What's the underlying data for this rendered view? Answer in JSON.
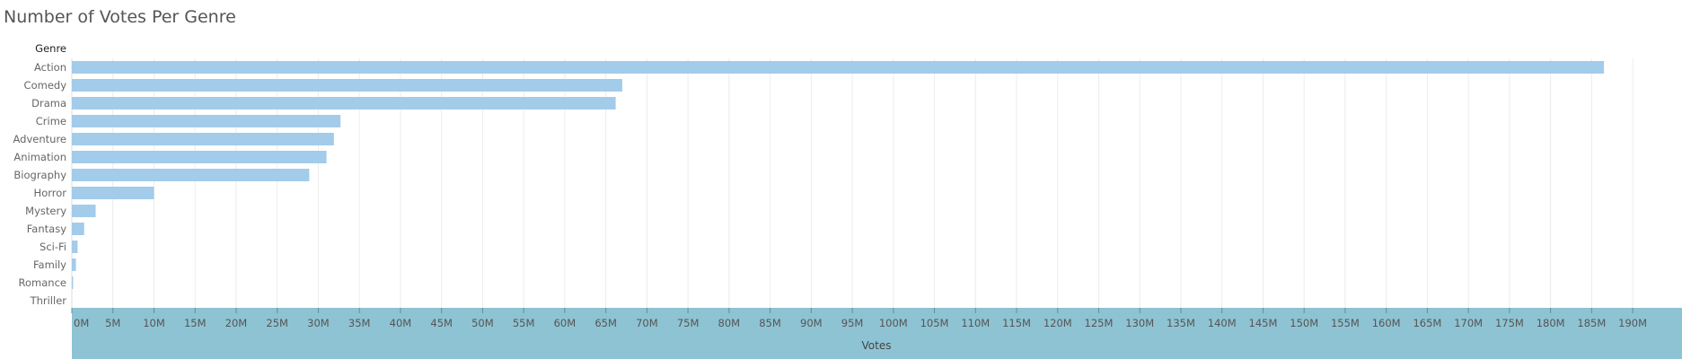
{
  "chart_data": {
    "type": "bar",
    "orientation": "horizontal",
    "title": "Number of Votes Per Genre",
    "row_header": "Genre",
    "xlabel": "Votes",
    "categories": [
      "Action",
      "Comedy",
      "Drama",
      "Crime",
      "Adventure",
      "Animation",
      "Biography",
      "Horror",
      "Mystery",
      "Fantasy",
      "Sci-Fi",
      "Family",
      "Romance",
      "Thriller"
    ],
    "values": [
      186500000,
      67000000,
      66200000,
      32700000,
      31900000,
      31000000,
      28900000,
      10000000,
      2900000,
      1500000,
      700000,
      500000,
      150000,
      0
    ],
    "xlim": [
      0,
      196000000
    ],
    "ticks": [
      0,
      5000000,
      10000000,
      15000000,
      20000000,
      25000000,
      30000000,
      35000000,
      40000000,
      45000000,
      50000000,
      55000000,
      60000000,
      65000000,
      70000000,
      75000000,
      80000000,
      85000000,
      90000000,
      95000000,
      100000000,
      105000000,
      110000000,
      115000000,
      120000000,
      125000000,
      130000000,
      135000000,
      140000000,
      145000000,
      150000000,
      155000000,
      160000000,
      165000000,
      170000000,
      175000000,
      180000000,
      185000000,
      190000000
    ],
    "tick_labels": [
      "0M",
      "5M",
      "10M",
      "15M",
      "20M",
      "25M",
      "30M",
      "35M",
      "40M",
      "45M",
      "50M",
      "55M",
      "60M",
      "65M",
      "70M",
      "75M",
      "80M",
      "85M",
      "90M",
      "95M",
      "100M",
      "105M",
      "110M",
      "115M",
      "120M",
      "125M",
      "130M",
      "135M",
      "140M",
      "145M",
      "150M",
      "155M",
      "160M",
      "165M",
      "170M",
      "175M",
      "180M",
      "185M",
      "190M"
    ],
    "grid": true,
    "bar_color": "#a3cbea",
    "axis_band_color": "#8ec3d3"
  }
}
